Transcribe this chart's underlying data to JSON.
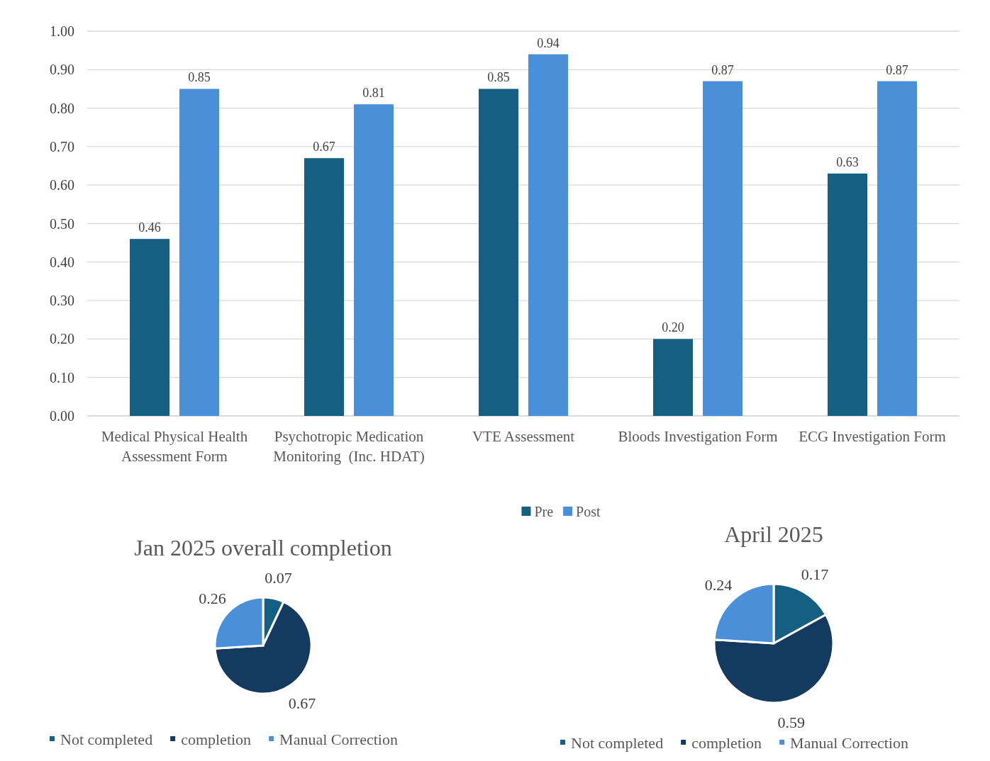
{
  "chart_data": [
    {
      "type": "bar",
      "categories": [
        "Medical Physical Health Assessment Form",
        "Psychotropic Medication Monitoring  (Inc. HDAT)",
        "VTE Assessment",
        "Bloods Investigation Form",
        "ECG Investigation Form"
      ],
      "series": [
        {
          "name": "Pre",
          "color": "#155f82",
          "values": [
            0.46,
            0.67,
            0.85,
            0.2,
            0.63
          ],
          "value_labels": [
            "0.46",
            "0.67",
            "0.85",
            "0.20",
            "0.63"
          ]
        },
        {
          "name": "Post",
          "color": "#4a90d9",
          "values": [
            0.85,
            0.81,
            0.94,
            0.87,
            0.87
          ],
          "value_labels": [
            "0.85",
            "0.81",
            "0.94",
            "0.87",
            "0.87"
          ]
        }
      ],
      "ylim": [
        0,
        1
      ],
      "yticks": [
        {
          "value": 0,
          "label": "0.00"
        },
        {
          "value": 0.1,
          "label": "0.10"
        },
        {
          "value": 0.2,
          "label": "0.20"
        },
        {
          "value": 0.3,
          "label": "0.30"
        },
        {
          "value": 0.4,
          "label": "0.40"
        },
        {
          "value": 0.5,
          "label": "0.50"
        },
        {
          "value": 0.6,
          "label": "0.60"
        },
        {
          "value": 0.7,
          "label": "0.70"
        },
        {
          "value": 0.8,
          "label": "0.80"
        },
        {
          "value": 0.9,
          "label": "0.90"
        },
        {
          "value": 1,
          "label": "1.00"
        }
      ],
      "grid": "y",
      "legend": "bottom"
    },
    {
      "type": "pie",
      "title": "Jan 2025 overall completion",
      "categories": [
        "Not completed",
        "completion",
        "Manual Correction"
      ],
      "values": [
        0.07,
        0.67,
        0.26
      ],
      "colors": [
        "#155f82",
        "#153a5f",
        "#4a90d9"
      ],
      "data_labels": true,
      "legend": "bottom"
    },
    {
      "type": "pie",
      "title": "April 2025",
      "categories": [
        "Not completed",
        "completion",
        "Manual Correction"
      ],
      "values": [
        0.17,
        0.59,
        0.24
      ],
      "colors": [
        "#155f82",
        "#153a5f",
        "#4a90d9"
      ],
      "data_labels": true,
      "legend": "bottom"
    }
  ]
}
